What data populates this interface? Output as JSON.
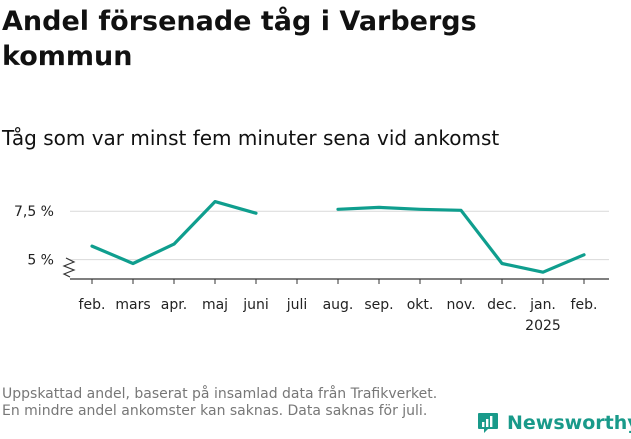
{
  "title": "Andel försenade tåg i Varbergs kommun",
  "subtitle": "Tåg som var minst fem minuter sena vid ankomst",
  "note": "Uppskattad andel, baserat på insamlad data från Trafikverket. En mindre andel ankomster kan saknas. Data saknas för juli.",
  "brand": {
    "name": "Newsworthy",
    "color": "#199a8a"
  },
  "chart_data": {
    "type": "line",
    "categories": [
      "feb.",
      "mars",
      "apr.",
      "maj",
      "juni",
      "juli",
      "aug.",
      "sep.",
      "okt.",
      "nov.",
      "dec.",
      "jan.",
      "feb."
    ],
    "category_sublabels": [
      "",
      "",
      "",
      "",
      "",
      "",
      "",
      "",
      "",
      "",
      "",
      "2025",
      ""
    ],
    "series": [
      {
        "values": [
          5.7,
          4.8,
          5.8,
          8.0,
          7.4,
          null,
          7.6,
          7.7,
          7.6,
          7.55,
          4.8,
          4.35,
          5.25
        ],
        "color": "#0f9e8e"
      }
    ],
    "y_ticks": [
      5,
      7.5
    ],
    "y_tick_labels": [
      "5 %",
      "7,5 %"
    ],
    "ylim": [
      4.0,
      8.7
    ],
    "y_axis_break": true,
    "grid": true,
    "xlabel": "",
    "ylabel": ""
  }
}
